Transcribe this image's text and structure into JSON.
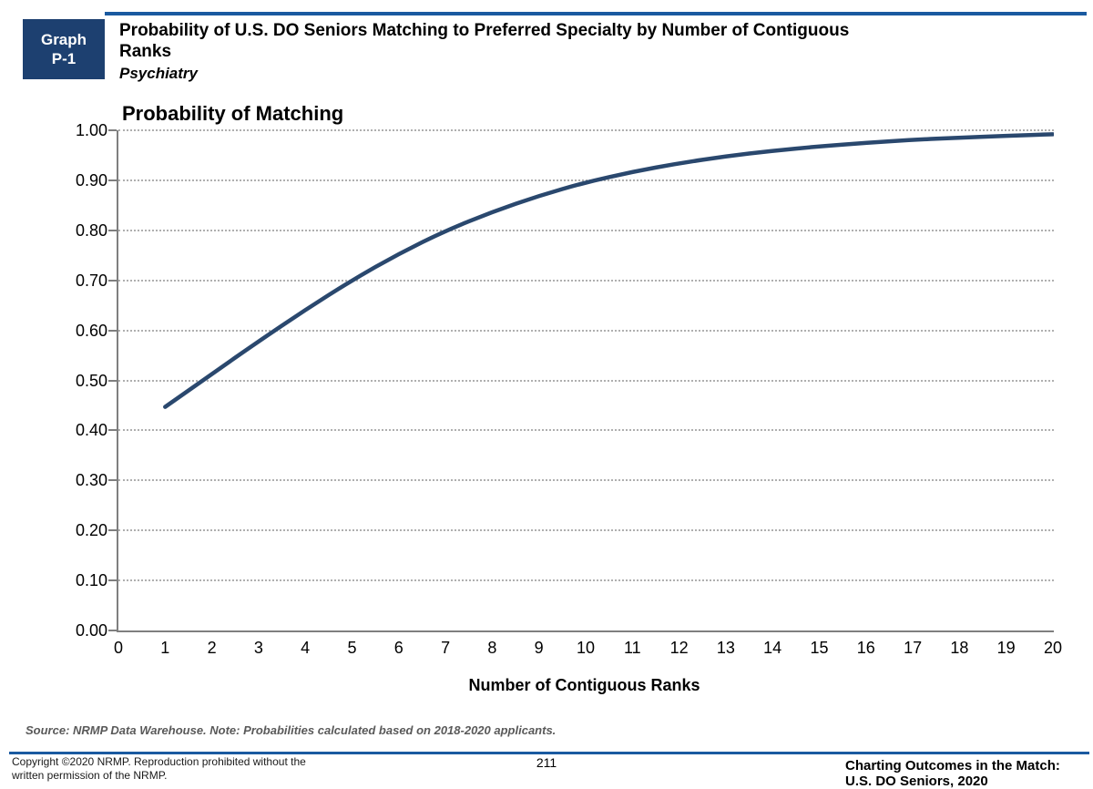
{
  "header": {
    "graph_box": [
      "Graph",
      "P-1"
    ],
    "title_lines": [
      "Probability of U.S. DO Seniors Matching to Preferred Specialty by Number of Contiguous",
      "Ranks"
    ],
    "subtitle": "Psychiatry"
  },
  "chart_data": {
    "type": "line",
    "title": "Probability of Matching",
    "xlabel": "Number of Contiguous Ranks",
    "ylabel": "Probability of Matching",
    "series": [
      {
        "name": "Psychiatry",
        "x": [
          1,
          2,
          3,
          4,
          5,
          6,
          7,
          8,
          9,
          10,
          11,
          12,
          13,
          14,
          15,
          16,
          17,
          18,
          19,
          20
        ],
        "y": [
          0.447,
          0.513,
          0.578,
          0.641,
          0.7,
          0.753,
          0.799,
          0.837,
          0.869,
          0.896,
          0.917,
          0.934,
          0.948,
          0.959,
          0.968,
          0.975,
          0.981,
          0.985,
          0.989,
          0.992
        ]
      }
    ],
    "xlim": [
      0,
      20
    ],
    "ylim": [
      0.0,
      1.0
    ],
    "xticks": [
      "0",
      "1",
      "2",
      "3",
      "4",
      "5",
      "6",
      "7",
      "8",
      "9",
      "10",
      "11",
      "12",
      "13",
      "14",
      "15",
      "16",
      "17",
      "18",
      "19",
      "20"
    ],
    "yticks": [
      "0.00",
      "0.10",
      "0.20",
      "0.30",
      "0.40",
      "0.50",
      "0.60",
      "0.70",
      "0.80",
      "0.90",
      "1.00"
    ],
    "grid": "horizontal-dotted",
    "legend": "none",
    "line_color": "#2A486E"
  },
  "footer": {
    "source_note": "Source: NRMP Data Warehouse. Note: Probabilities calculated based on 2018-2020 applicants.",
    "copyright_lines": [
      "Copyright ©2020 NRMP. Reproduction prohibited without the",
      "written permission of the NRMP."
    ],
    "page_number": "211",
    "publication_lines": [
      "Charting Outcomes in the Match:",
      "U.S. DO Seniors, 2020"
    ]
  },
  "colors": {
    "accent_navy": "#1D4070",
    "rule_blue": "#1A5AA0",
    "curve": "#2A486E",
    "gridline": "#AFAFAF",
    "axis": "#7F7F7F",
    "source_text": "#595959"
  }
}
